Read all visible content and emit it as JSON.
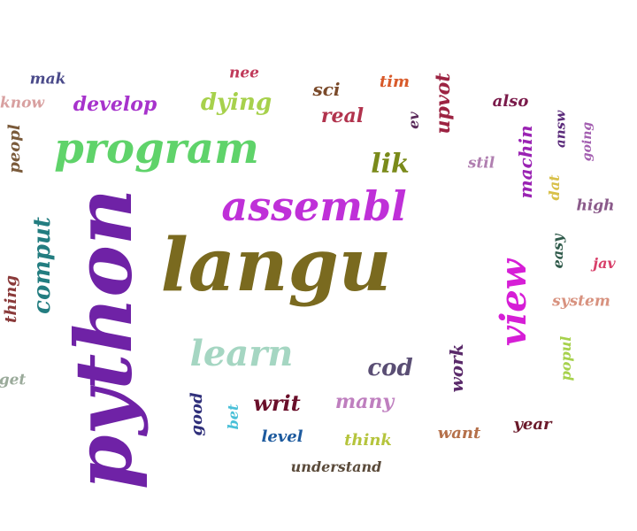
{
  "words": [
    {
      "key": "python",
      "text": "python",
      "color": "#6f22a6",
      "rotated": true
    },
    {
      "key": "langu",
      "text": "langu",
      "color": "#7a6a1f",
      "rotated": false
    },
    {
      "key": "program",
      "text": "program",
      "color": "#5fd36a",
      "rotated": false
    },
    {
      "key": "assembl",
      "text": "assembl",
      "color": "#bf30d8",
      "rotated": false
    },
    {
      "key": "view",
      "text": "view",
      "color": "#d61ed6",
      "rotated": true
    },
    {
      "key": "learn",
      "text": "learn",
      "color": "#a5d6c2",
      "rotated": false
    },
    {
      "key": "comput",
      "text": "comput",
      "color": "#237d80",
      "rotated": true
    },
    {
      "key": "lik",
      "text": "lik",
      "color": "#7a8a1a",
      "rotated": false
    },
    {
      "key": "cod",
      "text": "cod",
      "color": "#5a4e74",
      "rotated": false
    },
    {
      "key": "dying",
      "text": "dying",
      "color": "#a7d14c",
      "rotated": false
    },
    {
      "key": "develop",
      "text": "develop",
      "color": "#a733cc",
      "rotated": false
    },
    {
      "key": "writ",
      "text": "writ",
      "color": "#6a0f2a",
      "rotated": false
    },
    {
      "key": "upvot",
      "text": "upvot",
      "color": "#9c2342",
      "rotated": true
    },
    {
      "key": "real",
      "text": "real",
      "color": "#b1334d",
      "rotated": false
    },
    {
      "key": "many",
      "text": "many",
      "color": "#bf7fbf",
      "rotated": false
    },
    {
      "key": "machin",
      "text": "machin",
      "color": "#9a23b3",
      "rotated": true
    },
    {
      "key": "work",
      "text": "work",
      "color": "#5a2a6a",
      "rotated": true
    },
    {
      "key": "good",
      "text": "good",
      "color": "#2f2f7a",
      "rotated": true
    },
    {
      "key": "thing",
      "text": "thing",
      "color": "#8a3a3a",
      "rotated": true
    },
    {
      "key": "peopl",
      "text": "peopl",
      "color": "#7a5a3a",
      "rotated": true
    },
    {
      "key": "sci",
      "text": "sci",
      "color": "#7a4a2a",
      "rotated": false
    },
    {
      "key": "level",
      "text": "level",
      "color": "#1d5a9e",
      "rotated": false
    },
    {
      "key": "think",
      "text": "think",
      "color": "#b5c43c",
      "rotated": false
    },
    {
      "key": "want",
      "text": "want",
      "color": "#b5704a",
      "rotated": false
    },
    {
      "key": "year",
      "text": "year",
      "color": "#6a1a2a",
      "rotated": false
    },
    {
      "key": "understand",
      "text": "understand",
      "color": "#5a4a3a",
      "rotated": false
    },
    {
      "key": "system",
      "text": "system",
      "color": "#d8927f",
      "rotated": false
    },
    {
      "key": "high",
      "text": "high",
      "color": "#8a5a8a",
      "rotated": false
    },
    {
      "key": "stil",
      "text": "stil",
      "color": "#b07fb0",
      "rotated": false
    },
    {
      "key": "easy",
      "text": "easy",
      "color": "#2f5a4a",
      "rotated": true
    },
    {
      "key": "popul",
      "text": "popul",
      "color": "#a6d14c",
      "rotated": true
    },
    {
      "key": "also",
      "text": "also",
      "color": "#7a1a4a",
      "rotated": false
    },
    {
      "key": "answ",
      "text": "answ",
      "color": "#5a2a7a",
      "rotated": true
    },
    {
      "key": "going",
      "text": "going",
      "color": "#a35fb0",
      "rotated": true
    },
    {
      "key": "dat",
      "text": "dat",
      "color": "#d8c04a",
      "rotated": true
    },
    {
      "key": "jav",
      "text": "jav",
      "color": "#d8406a",
      "rotated": false
    },
    {
      "key": "ev",
      "text": "ev",
      "color": "#5a2a5a",
      "rotated": true
    },
    {
      "key": "tim",
      "text": "tim",
      "color": "#d85a2a",
      "rotated": false
    },
    {
      "key": "nee",
      "text": "nee",
      "color": "#c03a5a",
      "rotated": false
    },
    {
      "key": "mak",
      "text": "mak",
      "color": "#4a4a8a",
      "rotated": false
    },
    {
      "key": "know",
      "text": "know",
      "color": "#d8a0a0",
      "rotated": false
    },
    {
      "key": "get",
      "text": "get",
      "color": "#9aaa9a",
      "rotated": false
    },
    {
      "key": "bet",
      "text": "bet",
      "color": "#4ac0d8",
      "rotated": true
    }
  ]
}
